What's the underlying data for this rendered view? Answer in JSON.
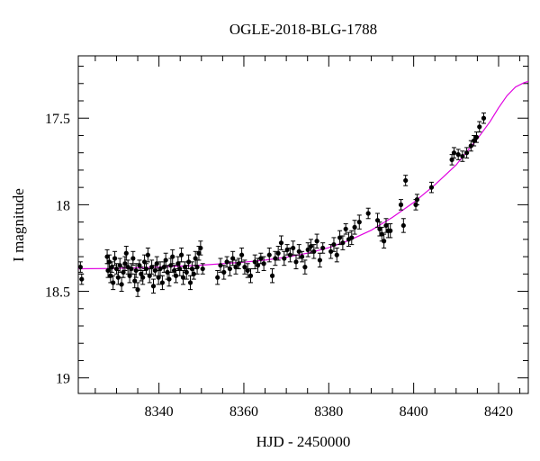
{
  "chart_data": {
    "type": "scatter",
    "title": "OGLE-2018-BLG-1788",
    "xlabel": "HJD - 2450000",
    "ylabel": "I magnitude",
    "xlim": [
      8321,
      8427
    ],
    "ylim": [
      19.09,
      17.14
    ],
    "y_inverted": true,
    "x_ticks": [
      8340,
      8360,
      8380,
      8400,
      8420
    ],
    "y_ticks": [
      17.5,
      18,
      18.5,
      19
    ],
    "y_tick_labels": [
      "17.5",
      "18",
      "18.5",
      "19"
    ],
    "grid": false,
    "colors": {
      "points": "#000000",
      "model": "#e000e0"
    },
    "series": [
      {
        "kind": "errorbar-scatter",
        "points": [
          [
            8321.5,
            18.36,
            0.03
          ],
          [
            8321.8,
            18.43,
            0.03
          ],
          [
            8327.8,
            18.3,
            0.04
          ],
          [
            8328.0,
            18.38,
            0.04
          ],
          [
            8328.3,
            18.33,
            0.04
          ],
          [
            8328.6,
            18.41,
            0.04
          ],
          [
            8328.9,
            18.36,
            0.03
          ],
          [
            8329.2,
            18.45,
            0.04
          ],
          [
            8329.6,
            18.31,
            0.04
          ],
          [
            8330.0,
            18.37,
            0.03
          ],
          [
            8330.4,
            18.42,
            0.04
          ],
          [
            8330.8,
            18.35,
            0.04
          ],
          [
            8331.2,
            18.46,
            0.04
          ],
          [
            8331.6,
            18.39,
            0.03
          ],
          [
            8332.0,
            18.34,
            0.04
          ],
          [
            8332.3,
            18.28,
            0.04
          ],
          [
            8332.7,
            18.36,
            0.04
          ],
          [
            8333.1,
            18.41,
            0.04
          ],
          [
            8333.5,
            18.37,
            0.03
          ],
          [
            8333.9,
            18.31,
            0.04
          ],
          [
            8334.3,
            18.44,
            0.04
          ],
          [
            8334.6,
            18.38,
            0.04
          ],
          [
            8335.0,
            18.49,
            0.04
          ],
          [
            8335.4,
            18.35,
            0.03
          ],
          [
            8335.8,
            18.4,
            0.04
          ],
          [
            8336.2,
            18.42,
            0.04
          ],
          [
            8336.6,
            18.33,
            0.04
          ],
          [
            8337.0,
            18.37,
            0.03
          ],
          [
            8337.4,
            18.29,
            0.04
          ],
          [
            8337.8,
            18.41,
            0.04
          ],
          [
            8338.3,
            18.36,
            0.04
          ],
          [
            8338.7,
            18.47,
            0.04
          ],
          [
            8339.1,
            18.38,
            0.03
          ],
          [
            8339.5,
            18.34,
            0.04
          ],
          [
            8339.9,
            18.42,
            0.04
          ],
          [
            8340.3,
            18.37,
            0.04
          ],
          [
            8340.8,
            18.45,
            0.04
          ],
          [
            8341.2,
            18.36,
            0.03
          ],
          [
            8341.6,
            18.32,
            0.04
          ],
          [
            8342.0,
            18.39,
            0.04
          ],
          [
            8342.4,
            18.43,
            0.04
          ],
          [
            8342.8,
            18.35,
            0.04
          ],
          [
            8343.2,
            18.3,
            0.04
          ],
          [
            8343.6,
            18.38,
            0.03
          ],
          [
            8344.0,
            18.41,
            0.04
          ],
          [
            8344.5,
            18.34,
            0.04
          ],
          [
            8344.9,
            18.37,
            0.04
          ],
          [
            8345.3,
            18.29,
            0.04
          ],
          [
            8345.7,
            18.42,
            0.04
          ],
          [
            8346.1,
            18.36,
            0.03
          ],
          [
            8346.5,
            18.39,
            0.04
          ],
          [
            8347.0,
            18.33,
            0.04
          ],
          [
            8347.4,
            18.45,
            0.04
          ],
          [
            8347.8,
            18.37,
            0.04
          ],
          [
            8348.2,
            18.4,
            0.03
          ],
          [
            8348.6,
            18.31,
            0.04
          ],
          [
            8349.0,
            18.36,
            0.04
          ],
          [
            8349.4,
            18.28,
            0.04
          ],
          [
            8349.8,
            18.25,
            0.04
          ],
          [
            8350.3,
            18.37,
            0.03
          ],
          [
            8353.8,
            18.42,
            0.04
          ],
          [
            8354.5,
            18.35,
            0.04
          ],
          [
            8355.3,
            18.39,
            0.04
          ],
          [
            8356.0,
            18.33,
            0.03
          ],
          [
            8356.7,
            18.37,
            0.04
          ],
          [
            8357.4,
            18.31,
            0.04
          ],
          [
            8358.1,
            18.36,
            0.04
          ],
          [
            8358.8,
            18.34,
            0.03
          ],
          [
            8359.5,
            18.29,
            0.04
          ],
          [
            8360.2,
            18.36,
            0.04
          ],
          [
            8360.9,
            18.38,
            0.04
          ],
          [
            8361.6,
            18.41,
            0.04
          ],
          [
            8362.6,
            18.33,
            0.04
          ],
          [
            8363.3,
            18.35,
            0.04
          ],
          [
            8364.0,
            18.31,
            0.03
          ],
          [
            8364.7,
            18.34,
            0.04
          ],
          [
            8366.0,
            18.29,
            0.04
          ],
          [
            8366.7,
            18.41,
            0.04
          ],
          [
            8367.4,
            18.31,
            0.04
          ],
          [
            8368.1,
            18.28,
            0.04
          ],
          [
            8368.8,
            18.22,
            0.04
          ],
          [
            8369.5,
            18.31,
            0.04
          ],
          [
            8370.2,
            18.26,
            0.03
          ],
          [
            8370.9,
            18.29,
            0.04
          ],
          [
            8371.6,
            18.25,
            0.04
          ],
          [
            8372.3,
            18.33,
            0.04
          ],
          [
            8373.0,
            18.27,
            0.04
          ],
          [
            8373.7,
            18.3,
            0.03
          ],
          [
            8374.4,
            18.36,
            0.04
          ],
          [
            8375.1,
            18.26,
            0.04
          ],
          [
            8375.8,
            18.24,
            0.04
          ],
          [
            8376.5,
            18.27,
            0.04
          ],
          [
            8377.2,
            18.21,
            0.04
          ],
          [
            8377.9,
            18.32,
            0.04
          ],
          [
            8378.6,
            18.25,
            0.03
          ],
          [
            8380.5,
            18.27,
            0.04
          ],
          [
            8381.2,
            18.23,
            0.04
          ],
          [
            8381.9,
            18.29,
            0.04
          ],
          [
            8382.6,
            18.19,
            0.04
          ],
          [
            8383.3,
            18.22,
            0.04
          ],
          [
            8384.0,
            18.14,
            0.03
          ],
          [
            8384.7,
            18.2,
            0.04
          ],
          [
            8385.4,
            18.19,
            0.04
          ],
          [
            8386.1,
            18.13,
            0.04
          ],
          [
            8387.2,
            18.1,
            0.04
          ],
          [
            8389.3,
            18.05,
            0.03
          ],
          [
            8391.5,
            18.09,
            0.04
          ],
          [
            8392.0,
            18.14,
            0.04
          ],
          [
            8392.5,
            18.17,
            0.04
          ],
          [
            8393.0,
            18.21,
            0.04
          ],
          [
            8393.5,
            18.12,
            0.04
          ],
          [
            8394.0,
            18.15,
            0.04
          ],
          [
            8394.5,
            18.15,
            0.04
          ],
          [
            8397.0,
            18.0,
            0.03
          ],
          [
            8398.1,
            17.86,
            0.03
          ],
          [
            8397.6,
            18.12,
            0.04
          ],
          [
            8400.5,
            18.0,
            0.03
          ],
          [
            8400.8,
            17.97,
            0.03
          ],
          [
            8404.2,
            17.9,
            0.03
          ],
          [
            8409.0,
            17.74,
            0.03
          ],
          [
            8409.5,
            17.7,
            0.03
          ],
          [
            8410.5,
            17.71,
            0.03
          ],
          [
            8411.5,
            17.72,
            0.03
          ],
          [
            8412.5,
            17.7,
            0.03
          ],
          [
            8413.5,
            17.66,
            0.03
          ],
          [
            8414.2,
            17.63,
            0.03
          ],
          [
            8414.8,
            17.61,
            0.03
          ],
          [
            8415.5,
            17.55,
            0.03
          ],
          [
            8416.5,
            17.5,
            0.03
          ]
        ]
      },
      {
        "kind": "model-line",
        "points": [
          [
            8321,
            18.37
          ],
          [
            8330,
            18.368
          ],
          [
            8340,
            18.36
          ],
          [
            8350,
            18.349
          ],
          [
            8360,
            18.332
          ],
          [
            8365,
            18.32
          ],
          [
            8370,
            18.303
          ],
          [
            8375,
            18.28
          ],
          [
            8380,
            18.248
          ],
          [
            8385,
            18.204
          ],
          [
            8390,
            18.147
          ],
          [
            8395,
            18.073
          ],
          [
            8400,
            17.987
          ],
          [
            8405,
            17.885
          ],
          [
            8410,
            17.77
          ],
          [
            8415,
            17.62
          ],
          [
            8418,
            17.52
          ],
          [
            8420,
            17.44
          ],
          [
            8422,
            17.37
          ],
          [
            8424,
            17.32
          ],
          [
            8426,
            17.295
          ],
          [
            8427,
            17.288
          ]
        ]
      }
    ]
  }
}
